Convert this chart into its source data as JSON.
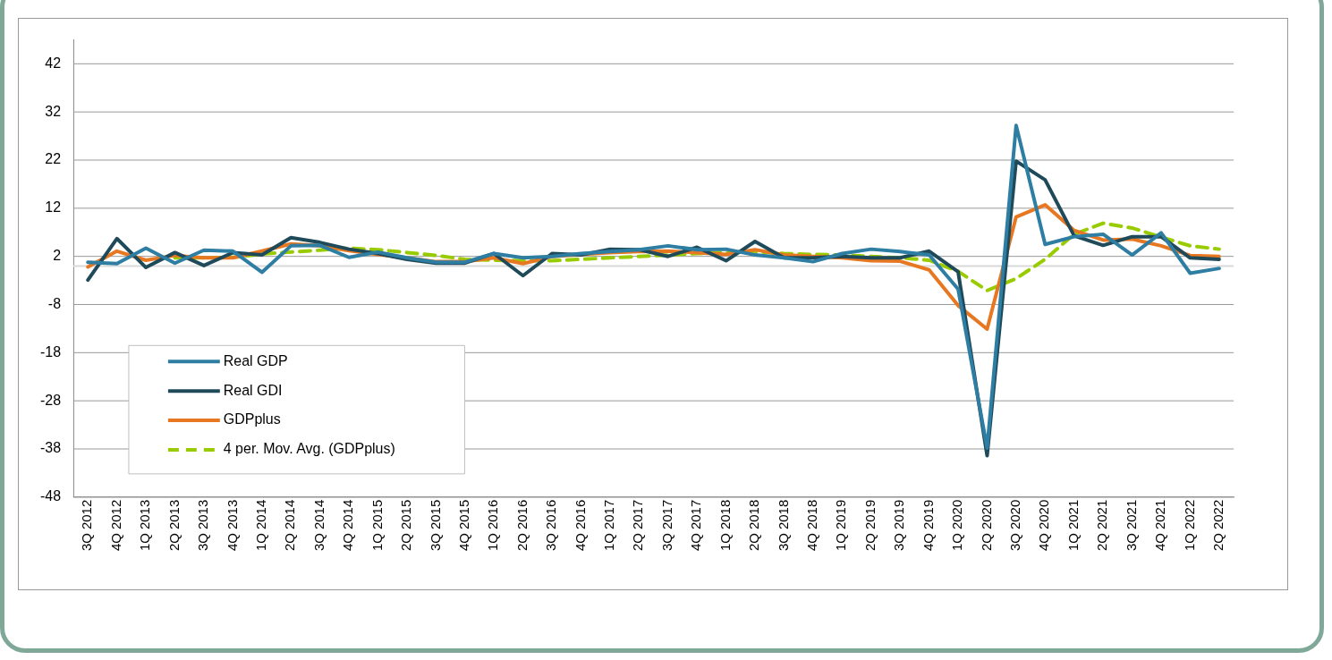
{
  "chart_data": {
    "type": "line",
    "categories": [
      "3Q 2012",
      "4Q 2012",
      "1Q 2013",
      "2Q 2013",
      "3Q 2013",
      "4Q 2013",
      "1Q 2014",
      "2Q 2014",
      "3Q 2014",
      "4Q 2014",
      "1Q 2015",
      "2Q 2015",
      "3Q 2015",
      "4Q 2015",
      "1Q 2016",
      "2Q 2016",
      "3Q 2016",
      "4Q 2016",
      "1Q 2017",
      "2Q 2017",
      "3Q 2017",
      "4Q 2017",
      "1Q 2018",
      "2Q 2018",
      "3Q 2018",
      "4Q 2018",
      "1Q 2019",
      "2Q 2019",
      "3Q 2019",
      "4Q 2019",
      "1Q 2020",
      "2Q 2020",
      "3Q 2020",
      "4Q 2020",
      "1Q 2021",
      "2Q 2021",
      "3Q 2021",
      "4Q 2021",
      "1Q 2022",
      "2Q 2022"
    ],
    "series": [
      {
        "name": "Real GDP",
        "color": "#2e7ea3",
        "line_style": "solid",
        "values": [
          0.8,
          0.5,
          3.7,
          0.6,
          3.3,
          3.1,
          -1.3,
          4.2,
          4.3,
          1.8,
          2.9,
          1.7,
          0.8,
          0.8,
          2.6,
          1.7,
          2.0,
          2.6,
          3.0,
          3.4,
          4.2,
          3.4,
          3.5,
          2.3,
          1.7,
          0.9,
          2.6,
          3.5,
          3.0,
          2.3,
          -4.8,
          -37.8,
          29.2,
          4.5,
          6.1,
          6.6,
          2.3,
          6.9,
          -1.5,
          -0.5
        ]
      },
      {
        "name": "Real GDI",
        "color": "#1f4a5a",
        "line_style": "solid",
        "values": [
          -2.9,
          5.7,
          -0.3,
          2.8,
          0.1,
          2.8,
          2.3,
          5.9,
          4.9,
          3.5,
          2.6,
          1.4,
          0.6,
          0.6,
          2.6,
          -2.0,
          2.6,
          2.3,
          3.5,
          3.4,
          2.0,
          3.9,
          1.1,
          5.1,
          1.7,
          1.7,
          2.0,
          1.7,
          1.7,
          3.1,
          -1.2,
          -39.4,
          21.8,
          17.9,
          6.3,
          4.3,
          6.1,
          6.1,
          1.7,
          1.4
        ]
      },
      {
        "name": "GDPplus",
        "color": "#e87722",
        "line_style": "solid",
        "values": [
          -0.2,
          3.1,
          1.2,
          2.2,
          1.7,
          1.7,
          3.1,
          4.6,
          4.2,
          3.2,
          2.4,
          1.7,
          0.9,
          0.9,
          1.7,
          0.5,
          2.0,
          2.4,
          2.8,
          3.0,
          3.1,
          2.8,
          2.4,
          3.4,
          2.3,
          2.0,
          1.7,
          1.1,
          1.0,
          -0.8,
          -8.2,
          -13.1,
          10.2,
          12.7,
          7.4,
          5.4,
          5.6,
          4.2,
          2.2,
          2.0
        ]
      },
      {
        "name": "4 per. Mov. Avg. (GDPplus)",
        "color": "#99cc00",
        "line_style": "dashed",
        "values": [
          null,
          null,
          null,
          1.7,
          1.7,
          1.8,
          2.5,
          2.9,
          3.3,
          3.7,
          3.4,
          2.8,
          2.2,
          1.4,
          1.2,
          1.1,
          1.1,
          1.4,
          1.7,
          2.0,
          2.3,
          2.6,
          2.8,
          3.0,
          2.6,
          2.4,
          2.3,
          2.0,
          1.7,
          1.2,
          -1.1,
          -5.1,
          -2.6,
          1.4,
          6.6,
          8.9,
          7.9,
          6.0,
          4.2,
          3.5
        ]
      }
    ],
    "ylim": [
      -48,
      47
    ],
    "yticks": [
      -48,
      -38,
      -28,
      -18,
      -8,
      2,
      12,
      22,
      32,
      42
    ],
    "ref_lines": [
      {
        "axis": "y",
        "value": 0,
        "color": "#d9d9d9"
      }
    ],
    "grid": "y",
    "legend": "bottom left",
    "marker": "none"
  }
}
